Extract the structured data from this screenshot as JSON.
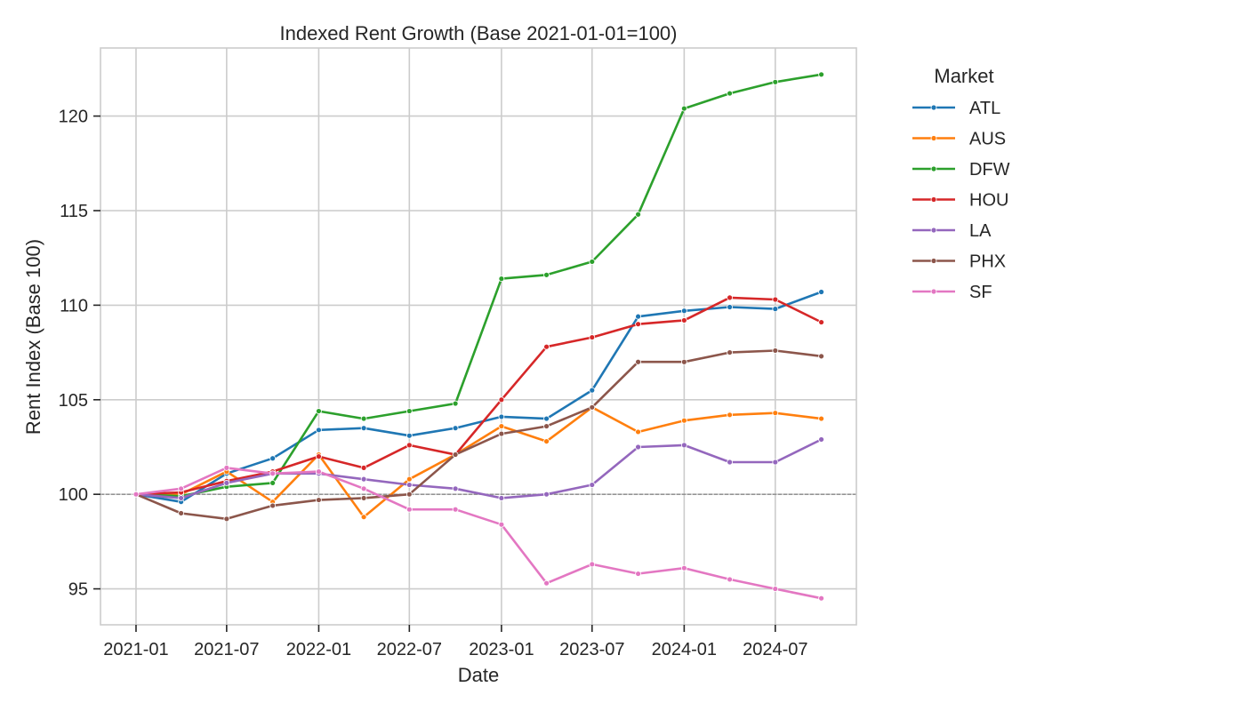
{
  "chart_data": {
    "type": "line",
    "title": "Indexed Rent Growth (Base 2021-01-01=100)",
    "xlabel": "Date",
    "ylabel": "Rent Index (Base 100)",
    "x": [
      "2021-01-01",
      "2021-04-01",
      "2021-07-01",
      "2021-10-01",
      "2022-01-01",
      "2022-04-01",
      "2022-07-01",
      "2022-10-01",
      "2023-01-01",
      "2023-04-01",
      "2023-07-01",
      "2023-10-01",
      "2024-01-01",
      "2024-04-01",
      "2024-07-01",
      "2024-10-01"
    ],
    "xlim": [
      "2020-10-22",
      "2024-12-10"
    ],
    "ylim": [
      93.1,
      123.6
    ],
    "x_ticks": [
      {
        "date": "2021-01-01",
        "label": "2021-01"
      },
      {
        "date": "2021-07-01",
        "label": "2021-07"
      },
      {
        "date": "2022-01-01",
        "label": "2022-01"
      },
      {
        "date": "2022-07-01",
        "label": "2022-07"
      },
      {
        "date": "2023-01-01",
        "label": "2023-01"
      },
      {
        "date": "2023-07-01",
        "label": "2023-07"
      },
      {
        "date": "2024-01-01",
        "label": "2024-01"
      },
      {
        "date": "2024-07-01",
        "label": "2024-07"
      }
    ],
    "y_ticks": [
      95,
      100,
      105,
      110,
      115,
      120
    ],
    "grid": true,
    "reference_line": {
      "y": 100,
      "style": "dashed",
      "color": "#808080"
    },
    "legend": {
      "title": "Market",
      "placement": "outside-right"
    },
    "series": [
      {
        "name": "ATL",
        "color": "#1f77b4",
        "values": [
          100.0,
          99.6,
          101.1,
          101.9,
          103.4,
          103.5,
          103.1,
          103.5,
          104.1,
          104.0,
          105.5,
          109.4,
          109.7,
          109.9,
          109.8,
          110.7
        ]
      },
      {
        "name": "AUS",
        "color": "#ff7f0e",
        "values": [
          100.0,
          100.0,
          101.2,
          99.6,
          102.1,
          98.8,
          100.8,
          102.1,
          103.6,
          102.8,
          104.6,
          103.3,
          103.9,
          104.2,
          104.3,
          104.0
        ]
      },
      {
        "name": "DFW",
        "color": "#2ca02c",
        "values": [
          100.0,
          99.9,
          100.4,
          100.6,
          104.4,
          104.0,
          104.4,
          104.8,
          111.4,
          111.6,
          112.3,
          114.8,
          120.4,
          121.2,
          121.8,
          122.2
        ]
      },
      {
        "name": "HOU",
        "color": "#d62728",
        "values": [
          100.0,
          100.1,
          100.7,
          101.2,
          102.0,
          101.4,
          102.6,
          102.1,
          105.0,
          107.8,
          108.3,
          109.0,
          109.2,
          110.4,
          110.3,
          109.1
        ]
      },
      {
        "name": "LA",
        "color": "#9467bd",
        "values": [
          100.0,
          99.8,
          100.6,
          101.1,
          101.1,
          100.8,
          100.5,
          100.3,
          99.8,
          100.0,
          100.5,
          102.5,
          102.6,
          101.7,
          101.7,
          102.9
        ]
      },
      {
        "name": "PHX",
        "color": "#8c564b",
        "values": [
          100.0,
          99.0,
          98.7,
          99.4,
          99.7,
          99.8,
          100.0,
          102.1,
          103.2,
          103.6,
          104.6,
          107.0,
          107.0,
          107.5,
          107.6,
          107.3
        ]
      },
      {
        "name": "SF",
        "color": "#e377c2",
        "values": [
          100.0,
          100.3,
          101.4,
          101.1,
          101.2,
          100.3,
          99.2,
          99.2,
          98.4,
          95.3,
          96.3,
          95.8,
          96.1,
          95.5,
          95.0,
          94.5
        ]
      }
    ]
  }
}
